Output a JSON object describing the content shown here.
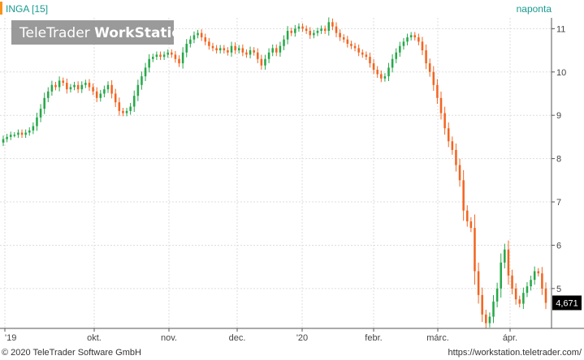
{
  "header": {
    "symbol": "INGA [15]",
    "interval": "naponta"
  },
  "watermark": {
    "brand": "TeleTrader",
    "product": "WorkStation"
  },
  "footer": {
    "copyright": "© 2020 TeleTrader Software GmbH",
    "url": "https://workstation.teletrader.com/"
  },
  "colors": {
    "up": "#27a84a",
    "down": "#f26522",
    "accent": "#f7941d",
    "grid": "#dddddd",
    "link": "#169b8f"
  },
  "chart_data": {
    "type": "candlestick",
    "title": "INGA [15]",
    "period": "naponta",
    "ylim": [
      4.08,
      11.25
    ],
    "y_ticks": [
      5,
      6,
      7,
      8,
      9,
      10,
      11
    ],
    "y_axis_side": "right",
    "x_tick_labels": [
      "'19",
      "okt.",
      "nov.",
      "dec.",
      "'20",
      "febr.",
      "márc.",
      "ápr."
    ],
    "last_value_label": "4,671",
    "grid": true,
    "close_series": [
      8.45,
      8.5,
      8.55,
      8.55,
      8.6,
      8.55,
      8.6,
      8.65,
      8.75,
      8.95,
      9.15,
      9.4,
      9.55,
      9.7,
      9.65,
      9.8,
      9.75,
      9.6,
      9.65,
      9.7,
      9.6,
      9.7,
      9.75,
      9.65,
      9.55,
      9.4,
      9.5,
      9.6,
      9.7,
      9.5,
      9.3,
      9.1,
      9.05,
      9.1,
      9.2,
      9.45,
      9.7,
      9.9,
      10.1,
      10.3,
      10.35,
      10.4,
      10.35,
      10.4,
      10.45,
      10.4,
      10.3,
      10.2,
      10.45,
      10.65,
      10.75,
      10.85,
      10.9,
      10.8,
      10.7,
      10.6,
      10.55,
      10.5,
      10.55,
      10.5,
      10.45,
      10.6,
      10.5,
      10.55,
      10.45,
      10.4,
      10.5,
      10.45,
      10.3,
      10.15,
      10.3,
      10.45,
      10.55,
      10.45,
      10.6,
      10.75,
      10.95,
      10.9,
      11.0,
      11.05,
      11.0,
      10.95,
      10.85,
      10.9,
      10.95,
      11.0,
      10.95,
      11.15,
      11.05,
      10.9,
      10.8,
      10.75,
      10.65,
      10.6,
      10.55,
      10.45,
      10.4,
      10.35,
      10.2,
      10.05,
      9.95,
      9.85,
      9.9,
      10.1,
      10.3,
      10.45,
      10.6,
      10.7,
      10.8,
      10.85,
      10.8,
      10.7,
      10.5,
      10.2,
      10.0,
      9.7,
      9.4,
      9.05,
      8.7,
      8.4,
      8.2,
      7.85,
      7.5,
      6.8,
      6.55,
      6.4,
      5.4,
      4.85,
      4.4,
      4.2,
      4.35,
      4.7,
      5.0,
      5.6,
      5.9,
      5.3,
      5.0,
      4.75,
      4.65,
      4.9,
      5.05,
      5.2,
      5.4,
      5.35,
      5.0,
      4.67
    ]
  }
}
